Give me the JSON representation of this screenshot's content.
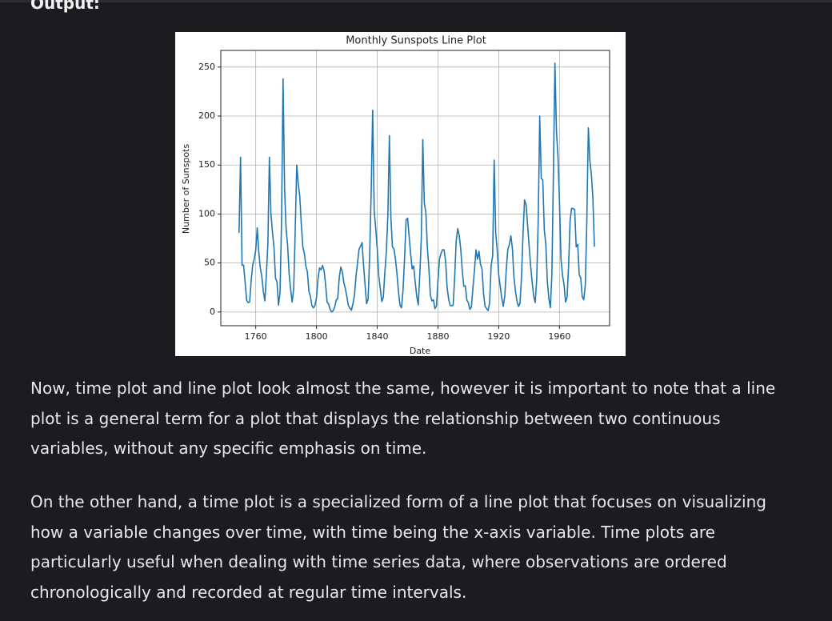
{
  "heading": "Output:",
  "chart_data": {
    "type": "line",
    "title": "Monthly Sunspots Line Plot",
    "xlabel": "Date",
    "ylabel": "Number of Sunspots",
    "color": "#1f77b4",
    "grid": true,
    "xlim": [
      1737,
      1993
    ],
    "ylim": [
      -14,
      267
    ],
    "xticks": [
      1760,
      1800,
      1840,
      1880,
      1920,
      1960
    ],
    "yticks": [
      0,
      50,
      100,
      150,
      200,
      250
    ],
    "x": [
      1749,
      1750,
      1751,
      1752,
      1753,
      1754,
      1755,
      1756,
      1757,
      1758,
      1759,
      1760,
      1761,
      1762,
      1763,
      1764,
      1765,
      1766,
      1767,
      1768,
      1769,
      1770,
      1771,
      1772,
      1773,
      1774,
      1775,
      1776,
      1777,
      1778,
      1779,
      1780,
      1781,
      1782,
      1783,
      1784,
      1785,
      1786,
      1787,
      1788,
      1789,
      1790,
      1791,
      1792,
      1793,
      1794,
      1795,
      1796,
      1797,
      1798,
      1799,
      1800,
      1801,
      1802,
      1803,
      1804,
      1805,
      1806,
      1807,
      1808,
      1809,
      1810,
      1811,
      1812,
      1813,
      1814,
      1815,
      1816,
      1817,
      1818,
      1819,
      1820,
      1821,
      1822,
      1823,
      1824,
      1825,
      1826,
      1827,
      1828,
      1829,
      1830,
      1831,
      1832,
      1833,
      1834,
      1835,
      1836,
      1837,
      1838,
      1839,
      1840,
      1841,
      1842,
      1843,
      1844,
      1845,
      1846,
      1847,
      1848,
      1849,
      1850,
      1851,
      1852,
      1853,
      1854,
      1855,
      1856,
      1857,
      1858,
      1859,
      1860,
      1861,
      1862,
      1863,
      1864,
      1865,
      1866,
      1867,
      1868,
      1869,
      1870,
      1871,
      1872,
      1873,
      1874,
      1875,
      1876,
      1877,
      1878,
      1879,
      1880,
      1881,
      1882,
      1883,
      1884,
      1885,
      1886,
      1887,
      1888,
      1889,
      1890,
      1891,
      1892,
      1893,
      1894,
      1895,
      1896,
      1897,
      1898,
      1899,
      1900,
      1901,
      1902,
      1903,
      1904,
      1905,
      1906,
      1907,
      1908,
      1909,
      1910,
      1911,
      1912,
      1913,
      1914,
      1915,
      1916,
      1917,
      1918,
      1919,
      1920,
      1921,
      1922,
      1923,
      1924,
      1925,
      1926,
      1927,
      1928,
      1929,
      1930,
      1931,
      1932,
      1933,
      1934,
      1935,
      1936,
      1937,
      1938,
      1939,
      1940,
      1941,
      1942,
      1943,
      1944,
      1945,
      1946,
      1947,
      1948,
      1949,
      1950,
      1951,
      1952,
      1953,
      1954,
      1955,
      1956,
      1957,
      1958,
      1959,
      1960,
      1961,
      1962,
      1963,
      1964,
      1965,
      1966,
      1967,
      1968,
      1969,
      1970,
      1971,
      1972,
      1973,
      1974,
      1975,
      1976,
      1977,
      1978,
      1979,
      1980,
      1981,
      1982,
      1983
    ],
    "values": [
      80.9,
      158,
      47.7,
      47.8,
      30.7,
      12.2,
      9.6,
      10.2,
      32.4,
      47.6,
      54.0,
      62.9,
      85.9,
      61.2,
      45.1,
      36.4,
      20.9,
      11.4,
      37.8,
      69.8,
      158,
      100.8,
      81.6,
      66.5,
      34.8,
      30.6,
      7.0,
      19.8,
      92.5,
      238,
      125.9,
      84.8,
      68.1,
      38.5,
      22.8,
      10.2,
      24.1,
      82.9,
      150,
      130.9,
      118.1,
      89.9,
      66.6,
      60.0,
      46.9,
      41.0,
      21.3,
      16.0,
      6.4,
      4.1,
      6.8,
      14.5,
      34.0,
      45.0,
      43.1,
      47.5,
      42.2,
      28.1,
      10.1,
      8.1,
      2.5,
      0.0,
      1.4,
      5.0,
      12.2,
      13.9,
      35.4,
      45.8,
      41.0,
      30.1,
      23.9,
      15.6,
      6.6,
      4.0,
      1.8,
      8.5,
      16.6,
      36.3,
      49.6,
      64.2,
      67.0,
      70.9,
      47.8,
      27.5,
      8.5,
      13.2,
      56.9,
      121.5,
      206,
      103.2,
      85.7,
      64.6,
      36.7,
      24.2,
      10.7,
      15.0,
      40.1,
      61.5,
      98.5,
      180,
      96.3,
      66.6,
      64.5,
      54.1,
      39.0,
      20.6,
      6.7,
      4.3,
      22.7,
      54.8,
      93.8,
      95.8,
      77.2,
      59.1,
      44.0,
      47.0,
      30.5,
      16.3,
      7.3,
      37.6,
      74.0,
      176,
      111.2,
      101.6,
      66.2,
      44.7,
      17.0,
      11.3,
      12.4,
      3.4,
      6.0,
      32.3,
      54.3,
      59.7,
      63.7,
      63.5,
      52.2,
      25.4,
      13.1,
      6.8,
      6.3,
      7.1,
      35.6,
      73.0,
      85.1,
      78.0,
      64.0,
      41.8,
      26.2,
      26.7,
      12.1,
      9.5,
      2.7,
      5.0,
      24.4,
      42.0,
      63.5,
      53.8,
      62.0,
      48.5,
      43.9,
      18.6,
      5.7,
      3.6,
      1.4,
      9.6,
      47.4,
      57.1,
      155,
      80.6,
      63.6,
      37.6,
      26.1,
      14.2,
      5.8,
      16.7,
      44.3,
      63.9,
      69.0,
      77.8,
      64.9,
      35.7,
      21.2,
      11.1,
      5.7,
      8.7,
      36.1,
      79.7,
      114.4,
      109.6,
      88.8,
      67.8,
      47.5,
      30.6,
      16.3,
      9.6,
      33.2,
      92.6,
      200,
      136.3,
      134.7,
      83.9,
      69.4,
      31.5,
      13.9,
      4.4,
      38.0,
      141.7,
      254,
      184.8,
      159.0,
      112.3,
      53.9,
      37.5,
      27.9,
      10.2,
      15.1,
      47.0,
      93.8,
      105.9,
      105.5,
      104.5,
      66.6,
      68.9,
      38.0,
      34.5,
      15.5,
      12.6,
      27.5,
      92.5,
      188,
      154.6,
      140.4,
      115.9,
      66.6
    ]
  },
  "paragraphs": [
    "Now, time plot and line plot look almost the same, however it is important to note that a line plot is a general term for a plot that displays the relationship between two continuous variables, without any specific emphasis on time.",
    "On the other hand, a time plot is a specialized form of a line plot that focuses on visualizing how a variable changes over time, with time being the x-axis variable. Time plots are particularly useful when dealing with time series data, where observations are ordered chronologically and recorded at regular time intervals."
  ]
}
